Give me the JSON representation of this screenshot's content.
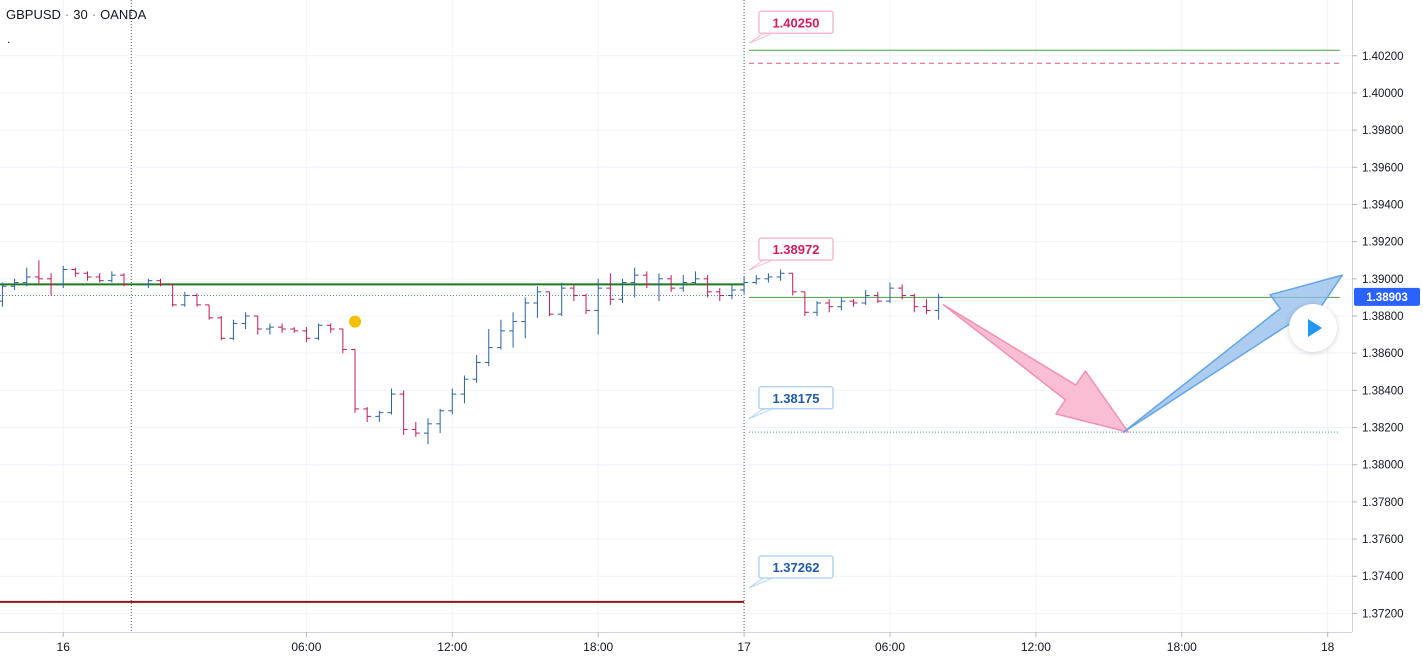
{
  "header": {
    "symbol": "GBPUSD",
    "interval": "30",
    "source": "OANDA",
    "indicator_dot": "."
  },
  "colors": {
    "up": "#2962a8",
    "down": "#c2185b",
    "grid": "#f0f3fa",
    "green_line": "#1b7a1b",
    "red_line": "#8b1a1a",
    "pink_arrow": "#f7a8c4",
    "blue_arrow": "#90bcea",
    "last_price_bg": "#2962ff"
  },
  "chart_data": {
    "type": "ohlc",
    "ylim": [
      1.371,
      1.405
    ],
    "y_ticks": [
      "1.40200",
      "1.40000",
      "1.39800",
      "1.39600",
      "1.39400",
      "1.39200",
      "1.39000",
      "1.38800",
      "1.38600",
      "1.38400",
      "1.38200",
      "1.38000",
      "1.37800",
      "1.37600",
      "1.37400",
      "1.37200"
    ],
    "x_labels": [
      {
        "label": "16",
        "t": -4
      },
      {
        "label": "06:00",
        "t": 6
      },
      {
        "label": "12:00",
        "t": 12
      },
      {
        "label": "18:00",
        "t": 18
      },
      {
        "label": "17",
        "t": 24
      },
      {
        "label": "06:00",
        "t": 30
      },
      {
        "label": "12:00",
        "t": 36
      },
      {
        "label": "18:00",
        "t": 42
      },
      {
        "label": "18",
        "t": 48
      }
    ],
    "xlim": [
      -6.6,
      49
    ],
    "day_separators": [
      -1.2,
      24
    ],
    "bars": [
      [
        -6.5,
        1.3888,
        1.3898,
        1.3885,
        1.3896
      ],
      [
        -6.0,
        1.3896,
        1.39,
        1.3894,
        1.3898
      ],
      [
        -5.5,
        1.3898,
        1.3906,
        1.3896,
        1.3901
      ],
      [
        -5.0,
        1.3901,
        1.391,
        1.3897,
        1.39
      ],
      [
        -4.5,
        1.39,
        1.3903,
        1.3891,
        1.3897
      ],
      [
        -4.0,
        1.3897,
        1.3907,
        1.3895,
        1.3905
      ],
      [
        -3.5,
        1.3905,
        1.3906,
        1.3901,
        1.3903
      ],
      [
        -3.0,
        1.3903,
        1.3904,
        1.3899,
        1.3901
      ],
      [
        -2.5,
        1.3901,
        1.3903,
        1.3898,
        1.3899
      ],
      [
        -2.0,
        1.3899,
        1.3904,
        1.3898,
        1.3902
      ],
      [
        -1.5,
        1.3902,
        1.3903,
        1.3896,
        1.3897
      ],
      [
        -0.5,
        1.3897,
        1.39,
        1.3895,
        1.3899
      ],
      [
        0.0,
        1.3899,
        1.39,
        1.3896,
        1.3897
      ],
      [
        0.5,
        1.3897,
        1.3897,
        1.3885,
        1.3886
      ],
      [
        1.0,
        1.3886,
        1.3893,
        1.3885,
        1.3891
      ],
      [
        1.5,
        1.3891,
        1.3892,
        1.3885,
        1.3886
      ],
      [
        2.0,
        1.3886,
        1.3886,
        1.3878,
        1.3879
      ],
      [
        2.5,
        1.3879,
        1.388,
        1.3867,
        1.3868
      ],
      [
        3.0,
        1.3868,
        1.3878,
        1.3867,
        1.3876
      ],
      [
        3.5,
        1.3876,
        1.3882,
        1.3873,
        1.388
      ],
      [
        4.0,
        1.388,
        1.388,
        1.387,
        1.3873
      ],
      [
        4.5,
        1.3873,
        1.3876,
        1.387,
        1.3874
      ],
      [
        5.0,
        1.3874,
        1.3876,
        1.3871,
        1.3873
      ],
      [
        5.5,
        1.3873,
        1.3874,
        1.3871,
        1.3872
      ],
      [
        6.0,
        1.3872,
        1.3874,
        1.3866,
        1.3868
      ],
      [
        6.5,
        1.3868,
        1.3876,
        1.3867,
        1.3875
      ],
      [
        7.0,
        1.3875,
        1.3876,
        1.3871,
        1.3873
      ],
      [
        7.5,
        1.3873,
        1.3873,
        1.386,
        1.3862
      ],
      [
        8.0,
        1.3862,
        1.3862,
        1.3828,
        1.383
      ],
      [
        8.5,
        1.383,
        1.3831,
        1.3823,
        1.3826
      ],
      [
        9.0,
        1.3826,
        1.3829,
        1.3823,
        1.3828
      ],
      [
        9.5,
        1.3828,
        1.3841,
        1.3827,
        1.3838
      ],
      [
        10.0,
        1.3838,
        1.384,
        1.3816,
        1.3819
      ],
      [
        10.5,
        1.3819,
        1.3823,
        1.3815,
        1.3817
      ],
      [
        11.0,
        1.3817,
        1.3825,
        1.3811,
        1.3822
      ],
      [
        11.5,
        1.3822,
        1.383,
        1.3817,
        1.3829
      ],
      [
        12.0,
        1.3829,
        1.3841,
        1.3827,
        1.3838
      ],
      [
        12.5,
        1.3838,
        1.3848,
        1.3833,
        1.3846
      ],
      [
        13.0,
        1.3846,
        1.3859,
        1.3844,
        1.3855
      ],
      [
        13.5,
        1.3855,
        1.3873,
        1.3853,
        1.3863
      ],
      [
        14.0,
        1.3863,
        1.3878,
        1.3862,
        1.3872
      ],
      [
        14.5,
        1.3872,
        1.3882,
        1.3863,
        1.3877
      ],
      [
        15.0,
        1.3877,
        1.389,
        1.3868,
        1.3887
      ],
      [
        15.5,
        1.3887,
        1.3896,
        1.3879,
        1.3893
      ],
      [
        16.0,
        1.3893,
        1.3893,
        1.388,
        1.3881
      ],
      [
        16.5,
        1.3881,
        1.3898,
        1.388,
        1.3895
      ],
      [
        17.0,
        1.3895,
        1.3897,
        1.3888,
        1.3891
      ],
      [
        17.5,
        1.3891,
        1.3892,
        1.3881,
        1.3883
      ],
      [
        18.0,
        1.3883,
        1.39,
        1.387,
        1.3895
      ],
      [
        18.5,
        1.3895,
        1.3903,
        1.3886,
        1.3889
      ],
      [
        19.0,
        1.3889,
        1.39,
        1.3887,
        1.3898
      ],
      [
        19.5,
        1.3898,
        1.3906,
        1.389,
        1.3902
      ],
      [
        20.0,
        1.3902,
        1.3904,
        1.3895,
        1.3897
      ],
      [
        20.5,
        1.3897,
        1.3903,
        1.3888,
        1.39
      ],
      [
        21.0,
        1.39,
        1.3902,
        1.3893,
        1.3895
      ],
      [
        21.5,
        1.3895,
        1.3902,
        1.3893,
        1.3898
      ],
      [
        22.0,
        1.3898,
        1.3904,
        1.3897,
        1.39
      ],
      [
        22.5,
        1.39,
        1.3902,
        1.389,
        1.3893
      ],
      [
        23.0,
        1.3893,
        1.3895,
        1.3888,
        1.3891
      ],
      [
        23.5,
        1.3891,
        1.3897,
        1.3889,
        1.3894
      ],
      [
        24.0,
        1.3894,
        1.3901,
        1.3892,
        1.3898
      ],
      [
        24.5,
        1.3898,
        1.3902,
        1.3897,
        1.39
      ],
      [
        25.0,
        1.39,
        1.3903,
        1.3898,
        1.3901
      ],
      [
        25.5,
        1.3901,
        1.3905,
        1.3899,
        1.3903
      ],
      [
        26.0,
        1.3903,
        1.3903,
        1.3891,
        1.3893
      ],
      [
        26.5,
        1.3893,
        1.3893,
        1.388,
        1.3882
      ],
      [
        27.0,
        1.3882,
        1.3888,
        1.388,
        1.3887
      ],
      [
        27.5,
        1.3887,
        1.3889,
        1.3882,
        1.3885
      ],
      [
        28.0,
        1.3885,
        1.389,
        1.3883,
        1.3888
      ],
      [
        28.5,
        1.3888,
        1.3889,
        1.3885,
        1.3887
      ],
      [
        29.0,
        1.3887,
        1.3894,
        1.3886,
        1.3891
      ],
      [
        29.5,
        1.3891,
        1.3893,
        1.3887,
        1.3888
      ],
      [
        30.0,
        1.3888,
        1.3898,
        1.3887,
        1.3895
      ],
      [
        30.5,
        1.3895,
        1.3897,
        1.3889,
        1.3891
      ],
      [
        31.0,
        1.3891,
        1.3892,
        1.3882,
        1.3885
      ],
      [
        31.5,
        1.3885,
        1.3889,
        1.3881,
        1.3883
      ],
      [
        32.0,
        1.3883,
        1.3892,
        1.3878,
        1.389
      ]
    ],
    "levels": [
      {
        "name": "green-upper-level",
        "y": 1.4023,
        "style": "solid",
        "color": "#4c9a4c",
        "t0": 24.2,
        "t1": 48.5
      },
      {
        "name": "pink-dashed-level",
        "y": 1.4016,
        "style": "dashed",
        "color": "#e0558a",
        "t0": 24.2,
        "t1": 48.5
      },
      {
        "name": "green-support-level",
        "y": 1.3897,
        "style": "solid-thick",
        "color": "#1b7a1b",
        "t0": -6.6,
        "t1": 24.0
      },
      {
        "name": "green-current-level",
        "y": 1.389,
        "style": "solid",
        "color": "#4c9a4c",
        "t0": 24.2,
        "t1": 48.5
      },
      {
        "name": "blue-dotted-level-left",
        "y": 1.3891,
        "style": "dotted",
        "color": "#5a7fbf",
        "t0": -6.6,
        "t1": 24.0
      },
      {
        "name": "blue-dotted-target-level",
        "y": 1.38175,
        "style": "dotted",
        "color": "#5a7fbf",
        "t0": 24.2,
        "t1": 48.5
      },
      {
        "name": "red-lower-level",
        "y": 1.37262,
        "style": "solid-thick",
        "color": "#8b1a1a",
        "t0": -6.6,
        "t1": 24.0
      }
    ],
    "callouts": [
      {
        "name": "callout-1-38972",
        "text": "1.38972",
        "y": 1.3916,
        "color": "#d81b60",
        "border": "#f8bbd0"
      },
      {
        "name": "callout-1-38175",
        "text": "1.38175",
        "y": 1.3836,
        "color": "#1e5aa8",
        "border": "#b3d4f5"
      },
      {
        "name": "callout-1-37262",
        "text": "1.37262",
        "y": 1.3745,
        "color": "#1e5aa8",
        "border": "#b3d4f5"
      },
      {
        "name": "callout-top-clipped",
        "text": "1.40250",
        "y": 1.4038,
        "color": "#d81b60",
        "border": "#f8bbd0"
      }
    ],
    "last_price": {
      "label": "1.38903",
      "y": 1.38903
    },
    "marker": {
      "t": 8.0,
      "y": 1.3877,
      "color": "#f2c200"
    },
    "arrows": [
      {
        "name": "pink-down-arrow",
        "from": [
          32.2,
          1.3886
        ],
        "to": [
          39.8,
          1.38175
        ]
      },
      {
        "name": "blue-up-arrow",
        "from": [
          39.6,
          1.38175
        ],
        "to": [
          48.6,
          1.3902
        ]
      }
    ]
  }
}
